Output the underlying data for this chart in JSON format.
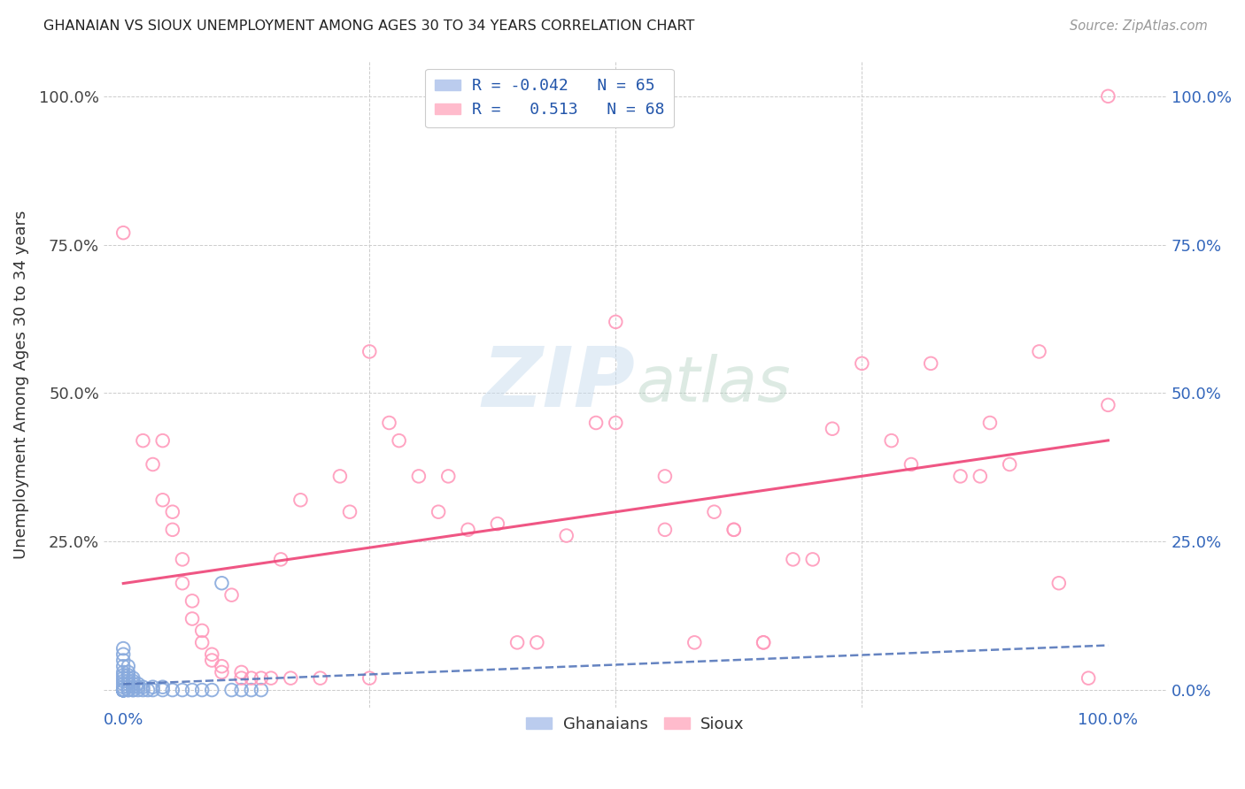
{
  "title": "GHANAIAN VS SIOUX UNEMPLOYMENT AMONG AGES 30 TO 34 YEARS CORRELATION CHART",
  "source": "Source: ZipAtlas.com",
  "ylabel": "Unemployment Among Ages 30 to 34 years",
  "ghanaian_color": "#88AADD",
  "sioux_color": "#FF99BB",
  "ghanaian_line_color": "#5577BB",
  "sioux_line_color": "#EE4477",
  "ghanaian_R": -0.042,
  "ghanaian_N": 65,
  "sioux_R": 0.513,
  "sioux_N": 68,
  "watermark_zip": "ZIP",
  "watermark_atlas": "atlas",
  "ghanaian_points": [
    [
      0.0,
      0.0
    ],
    [
      0.0,
      0.0
    ],
    [
      0.0,
      0.0
    ],
    [
      0.0,
      0.0
    ],
    [
      0.0,
      0.0
    ],
    [
      0.0,
      0.0
    ],
    [
      0.0,
      0.0
    ],
    [
      0.0,
      0.0
    ],
    [
      0.0,
      0.0
    ],
    [
      0.0,
      0.0
    ],
    [
      0.0,
      0.0
    ],
    [
      0.0,
      0.0
    ],
    [
      0.0,
      0.0
    ],
    [
      0.0,
      0.0
    ],
    [
      0.0,
      0.0
    ],
    [
      0.0,
      0.0
    ],
    [
      0.0,
      0.0
    ],
    [
      0.0,
      0.0
    ],
    [
      0.0,
      0.0
    ],
    [
      0.0,
      0.0
    ],
    [
      0.0,
      0.005
    ],
    [
      0.0,
      0.01
    ],
    [
      0.0,
      0.015
    ],
    [
      0.0,
      0.02
    ],
    [
      0.0,
      0.025
    ],
    [
      0.0,
      0.03
    ],
    [
      0.0,
      0.04
    ],
    [
      0.0,
      0.05
    ],
    [
      0.0,
      0.06
    ],
    [
      0.0,
      0.07
    ],
    [
      0.005,
      0.0
    ],
    [
      0.005,
      0.0
    ],
    [
      0.005,
      0.005
    ],
    [
      0.005,
      0.01
    ],
    [
      0.005,
      0.015
    ],
    [
      0.005,
      0.02
    ],
    [
      0.005,
      0.025
    ],
    [
      0.005,
      0.03
    ],
    [
      0.005,
      0.04
    ],
    [
      0.01,
      0.0
    ],
    [
      0.01,
      0.0
    ],
    [
      0.01,
      0.005
    ],
    [
      0.01,
      0.01
    ],
    [
      0.01,
      0.015
    ],
    [
      0.01,
      0.02
    ],
    [
      0.015,
      0.0
    ],
    [
      0.015,
      0.005
    ],
    [
      0.015,
      0.01
    ],
    [
      0.02,
      0.0
    ],
    [
      0.02,
      0.005
    ],
    [
      0.025,
      0.0
    ],
    [
      0.03,
      0.0
    ],
    [
      0.03,
      0.005
    ],
    [
      0.04,
      0.0
    ],
    [
      0.04,
      0.005
    ],
    [
      0.05,
      0.0
    ],
    [
      0.06,
      0.0
    ],
    [
      0.07,
      0.0
    ],
    [
      0.08,
      0.0
    ],
    [
      0.09,
      0.0
    ],
    [
      0.1,
      0.18
    ],
    [
      0.11,
      0.0
    ],
    [
      0.12,
      0.0
    ],
    [
      0.13,
      0.0
    ],
    [
      0.14,
      0.0
    ]
  ],
  "sioux_points": [
    [
      0.0,
      0.77
    ],
    [
      0.02,
      0.42
    ],
    [
      0.03,
      0.38
    ],
    [
      0.04,
      0.42
    ],
    [
      0.04,
      0.32
    ],
    [
      0.05,
      0.3
    ],
    [
      0.05,
      0.27
    ],
    [
      0.06,
      0.22
    ],
    [
      0.06,
      0.18
    ],
    [
      0.07,
      0.15
    ],
    [
      0.07,
      0.12
    ],
    [
      0.08,
      0.1
    ],
    [
      0.08,
      0.08
    ],
    [
      0.09,
      0.06
    ],
    [
      0.09,
      0.05
    ],
    [
      0.1,
      0.04
    ],
    [
      0.1,
      0.03
    ],
    [
      0.11,
      0.16
    ],
    [
      0.12,
      0.03
    ],
    [
      0.12,
      0.02
    ],
    [
      0.13,
      0.02
    ],
    [
      0.14,
      0.02
    ],
    [
      0.15,
      0.02
    ],
    [
      0.16,
      0.22
    ],
    [
      0.17,
      0.02
    ],
    [
      0.18,
      0.32
    ],
    [
      0.2,
      0.02
    ],
    [
      0.22,
      0.36
    ],
    [
      0.23,
      0.3
    ],
    [
      0.25,
      0.02
    ],
    [
      0.25,
      0.57
    ],
    [
      0.27,
      0.45
    ],
    [
      0.28,
      0.42
    ],
    [
      0.3,
      0.36
    ],
    [
      0.32,
      0.3
    ],
    [
      0.33,
      0.36
    ],
    [
      0.35,
      0.27
    ],
    [
      0.38,
      0.28
    ],
    [
      0.4,
      0.08
    ],
    [
      0.42,
      0.08
    ],
    [
      0.45,
      0.26
    ],
    [
      0.48,
      0.45
    ],
    [
      0.5,
      0.45
    ],
    [
      0.5,
      0.62
    ],
    [
      0.55,
      0.27
    ],
    [
      0.55,
      0.36
    ],
    [
      0.58,
      0.08
    ],
    [
      0.6,
      0.3
    ],
    [
      0.62,
      0.27
    ],
    [
      0.62,
      0.27
    ],
    [
      0.65,
      0.08
    ],
    [
      0.65,
      0.08
    ],
    [
      0.68,
      0.22
    ],
    [
      0.7,
      0.22
    ],
    [
      0.72,
      0.44
    ],
    [
      0.75,
      0.55
    ],
    [
      0.78,
      0.42
    ],
    [
      0.8,
      0.38
    ],
    [
      0.82,
      0.55
    ],
    [
      0.85,
      0.36
    ],
    [
      0.87,
      0.36
    ],
    [
      0.88,
      0.45
    ],
    [
      0.9,
      0.38
    ],
    [
      0.93,
      0.57
    ],
    [
      0.95,
      0.18
    ],
    [
      0.98,
      0.02
    ],
    [
      1.0,
      1.0
    ],
    [
      1.0,
      0.48
    ]
  ],
  "xlim": [
    -0.02,
    1.06
  ],
  "ylim": [
    -0.03,
    1.06
  ],
  "xticks": [
    0.0,
    0.25,
    0.5,
    0.75,
    1.0
  ],
  "yticks": [
    0.0,
    0.25,
    0.5,
    0.75,
    1.0
  ],
  "xtick_labels_show": [
    true,
    false,
    false,
    false,
    true
  ],
  "ytick_left_labels": [
    "",
    "25.0%",
    "50.0%",
    "75.0%",
    "100.0%"
  ],
  "ytick_right_labels": [
    "0.0%",
    "25.0%",
    "50.0%",
    "75.0%",
    "100.0%"
  ]
}
